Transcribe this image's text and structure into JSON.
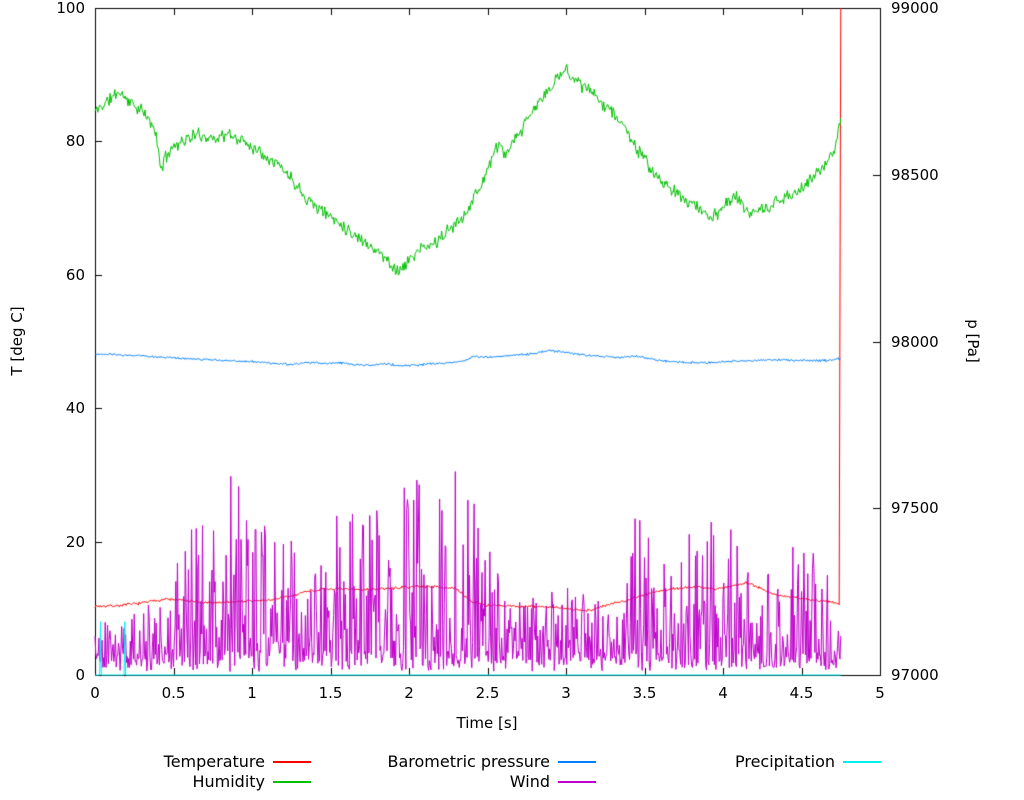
{
  "figure": {
    "background": "#ffffff",
    "axis_color": "#000000"
  },
  "chart_data": {
    "type": "line",
    "title": "",
    "xlabel": "Time [s]",
    "ylabel_left": "T [deg C]",
    "ylabel_right": "p [Pa]",
    "xlim": [
      0,
      5
    ],
    "ylim_left": [
      0,
      100
    ],
    "ylim_right": [
      97000,
      99000
    ],
    "x_tick_values": [
      0,
      0.5,
      1,
      1.5,
      2,
      2.5,
      3,
      3.5,
      4,
      4.5,
      5
    ],
    "x_tick_labels": [
      "0",
      "0.5",
      "1",
      "1.5",
      "2",
      "2.5",
      "3",
      "3.5",
      "4",
      "4.5",
      "5"
    ],
    "y_tick_values_left": [
      0,
      20,
      40,
      60,
      80,
      100
    ],
    "y_tick_labels_left": [
      "0",
      "20",
      "40",
      "60",
      "80",
      "100"
    ],
    "y_tick_values_right": [
      97000,
      97500,
      98000,
      98500,
      99000
    ],
    "y_tick_labels_right": [
      "97000",
      "97500",
      "98000",
      "98500",
      "99000"
    ],
    "grid": false,
    "legend_position": "bottom",
    "legend": [
      {
        "label": "Temperature",
        "color": "#ff0000",
        "row": 0,
        "col": 0
      },
      {
        "label": "Humidity",
        "color": "#00c000",
        "row": 1,
        "col": 0
      },
      {
        "label": "Barometric pressure",
        "color": "#0080ff",
        "row": 0,
        "col": 1
      },
      {
        "label": "Wind",
        "color": "#c000cc",
        "row": 1,
        "col": 1
      },
      {
        "label": "Precipitation",
        "color": "#00eeee",
        "row": 0,
        "col": 2
      }
    ],
    "series": [
      {
        "name": "Temperature",
        "color": "#ff0000",
        "axis": "left",
        "style": "noisy",
        "noise": 0.25,
        "seed": 7,
        "keypoints": [
          [
            0,
            10.3
          ],
          [
            0.15,
            10.4
          ],
          [
            0.3,
            10.8
          ],
          [
            0.45,
            11.4
          ],
          [
            0.55,
            11.2
          ],
          [
            0.7,
            10.8
          ],
          [
            0.9,
            11.0
          ],
          [
            1.1,
            11.2
          ],
          [
            1.25,
            11.8
          ],
          [
            1.35,
            12.6
          ],
          [
            1.5,
            12.9
          ],
          [
            1.7,
            12.8
          ],
          [
            1.9,
            13.0
          ],
          [
            2.05,
            13.3
          ],
          [
            2.2,
            13.2
          ],
          [
            2.3,
            12.9
          ],
          [
            2.4,
            11.0
          ],
          [
            2.5,
            10.4
          ],
          [
            2.7,
            10.3
          ],
          [
            2.9,
            10.2
          ],
          [
            3.05,
            9.8
          ],
          [
            3.15,
            9.7
          ],
          [
            3.25,
            10.4
          ],
          [
            3.4,
            11.3
          ],
          [
            3.55,
            12.4
          ],
          [
            3.7,
            13.0
          ],
          [
            3.85,
            13.2
          ],
          [
            3.95,
            12.9
          ],
          [
            4.05,
            13.3
          ],
          [
            4.15,
            13.9
          ],
          [
            4.25,
            12.9
          ],
          [
            4.35,
            11.9
          ],
          [
            4.5,
            11.5
          ],
          [
            4.6,
            11.1
          ],
          [
            4.7,
            11.0
          ],
          [
            4.74,
            10.6
          ],
          [
            4.75,
            100
          ]
        ]
      },
      {
        "name": "Humidity",
        "color": "#00c000",
        "axis": "left",
        "style": "noisy",
        "noise": 1.2,
        "seed": 11,
        "keypoints": [
          [
            0,
            84.5
          ],
          [
            0.08,
            86
          ],
          [
            0.15,
            87.5
          ],
          [
            0.22,
            86
          ],
          [
            0.3,
            84.5
          ],
          [
            0.38,
            82
          ],
          [
            0.42,
            76
          ],
          [
            0.48,
            79
          ],
          [
            0.55,
            80
          ],
          [
            0.65,
            81
          ],
          [
            0.75,
            80.5
          ],
          [
            0.85,
            81
          ],
          [
            0.95,
            80
          ],
          [
            1.05,
            78.5
          ],
          [
            1.15,
            77
          ],
          [
            1.25,
            74.5
          ],
          [
            1.35,
            71.5
          ],
          [
            1.45,
            69.5
          ],
          [
            1.55,
            68
          ],
          [
            1.65,
            66
          ],
          [
            1.75,
            64.5
          ],
          [
            1.85,
            62.5
          ],
          [
            1.93,
            60.5
          ],
          [
            1.98,
            61.5
          ],
          [
            2.05,
            63.5
          ],
          [
            2.15,
            64.5
          ],
          [
            2.25,
            66.5
          ],
          [
            2.35,
            69
          ],
          [
            2.45,
            73
          ],
          [
            2.52,
            77
          ],
          [
            2.57,
            79.5
          ],
          [
            2.62,
            78
          ],
          [
            2.7,
            81
          ],
          [
            2.8,
            85
          ],
          [
            2.9,
            88
          ],
          [
            3.0,
            91
          ],
          [
            3.05,
            89.5
          ],
          [
            3.15,
            87.5
          ],
          [
            3.25,
            85.5
          ],
          [
            3.35,
            83
          ],
          [
            3.45,
            79
          ],
          [
            3.55,
            75.5
          ],
          [
            3.65,
            73
          ],
          [
            3.75,
            71.5
          ],
          [
            3.85,
            70
          ],
          [
            3.92,
            68.5
          ],
          [
            4.0,
            70
          ],
          [
            4.07,
            72
          ],
          [
            4.15,
            69.5
          ],
          [
            4.25,
            69.5
          ],
          [
            4.35,
            71
          ],
          [
            4.45,
            72
          ],
          [
            4.55,
            74
          ],
          [
            4.65,
            76.5
          ],
          [
            4.72,
            79.5
          ],
          [
            4.75,
            83.5
          ]
        ]
      },
      {
        "name": "Barometric pressure",
        "color": "#0080ff",
        "axis": "right",
        "style": "noisy",
        "noise": 4,
        "seed": 23,
        "keypoints": [
          [
            0,
            97962
          ],
          [
            0.15,
            97960
          ],
          [
            0.3,
            97957
          ],
          [
            0.5,
            97951
          ],
          [
            0.7,
            97946
          ],
          [
            0.9,
            97942
          ],
          [
            1.05,
            97938
          ],
          [
            1.15,
            97934
          ],
          [
            1.25,
            97930
          ],
          [
            1.35,
            97938
          ],
          [
            1.45,
            97934
          ],
          [
            1.55,
            97937
          ],
          [
            1.65,
            97931
          ],
          [
            1.75,
            97929
          ],
          [
            1.85,
            97933
          ],
          [
            1.95,
            97927
          ],
          [
            2.05,
            97929
          ],
          [
            2.15,
            97933
          ],
          [
            2.25,
            97936
          ],
          [
            2.35,
            97942
          ],
          [
            2.42,
            97955
          ],
          [
            2.5,
            97952
          ],
          [
            2.6,
            97957
          ],
          [
            2.7,
            97960
          ],
          [
            2.8,
            97964
          ],
          [
            2.88,
            97973
          ],
          [
            2.95,
            97970
          ],
          [
            3.05,
            97963
          ],
          [
            3.15,
            97958
          ],
          [
            3.25,
            97955
          ],
          [
            3.35,
            97952
          ],
          [
            3.45,
            97956
          ],
          [
            3.55,
            97946
          ],
          [
            3.65,
            97941
          ],
          [
            3.75,
            97938
          ],
          [
            3.85,
            97936
          ],
          [
            3.95,
            97937
          ],
          [
            4.05,
            97941
          ],
          [
            4.2,
            97944
          ],
          [
            4.35,
            97945
          ],
          [
            4.5,
            97943
          ],
          [
            4.65,
            97943
          ],
          [
            4.75,
            97949
          ]
        ]
      },
      {
        "name": "Wind",
        "color": "#c000cc",
        "axis": "left",
        "style": "spiky",
        "base": 2.5,
        "spike_power": 2.6,
        "seed": 5,
        "envelope": [
          [
            0,
            7
          ],
          [
            0.1,
            6
          ],
          [
            0.2,
            8
          ],
          [
            0.3,
            8
          ],
          [
            0.4,
            12
          ],
          [
            0.5,
            24
          ],
          [
            0.6,
            20
          ],
          [
            0.7,
            22
          ],
          [
            0.8,
            30
          ],
          [
            0.9,
            34
          ],
          [
            1.0,
            26
          ],
          [
            1.1,
            20
          ],
          [
            1.2,
            18
          ],
          [
            1.3,
            20
          ],
          [
            1.45,
            16
          ],
          [
            1.55,
            24
          ],
          [
            1.7,
            26
          ],
          [
            1.85,
            24
          ],
          [
            1.95,
            30
          ],
          [
            2.05,
            30
          ],
          [
            2.15,
            26
          ],
          [
            2.25,
            29
          ],
          [
            2.35,
            28
          ],
          [
            2.45,
            26
          ],
          [
            2.55,
            14
          ],
          [
            2.65,
            10
          ],
          [
            2.75,
            11
          ],
          [
            2.85,
            12
          ],
          [
            2.95,
            10
          ],
          [
            3.05,
            11
          ],
          [
            3.15,
            12
          ],
          [
            3.25,
            10
          ],
          [
            3.35,
            9
          ],
          [
            3.45,
            24
          ],
          [
            3.55,
            20
          ],
          [
            3.65,
            16
          ],
          [
            3.75,
            18
          ],
          [
            3.85,
            20
          ],
          [
            3.95,
            22
          ],
          [
            4.05,
            20
          ],
          [
            4.15,
            17
          ],
          [
            4.25,
            14
          ],
          [
            4.35,
            16
          ],
          [
            4.45,
            18
          ],
          [
            4.55,
            16
          ],
          [
            4.65,
            20
          ],
          [
            4.72,
            12
          ],
          [
            4.75,
            8
          ]
        ]
      },
      {
        "name": "Precipitation",
        "color": "#00eeee",
        "axis": "left",
        "style": "impulse",
        "points": [
          [
            0,
            0
          ],
          [
            0.03,
            0
          ],
          [
            0.035,
            8
          ],
          [
            0.04,
            0
          ],
          [
            0.185,
            0
          ],
          [
            0.19,
            8
          ],
          [
            0.195,
            0
          ],
          [
            4.75,
            0
          ]
        ]
      }
    ]
  }
}
